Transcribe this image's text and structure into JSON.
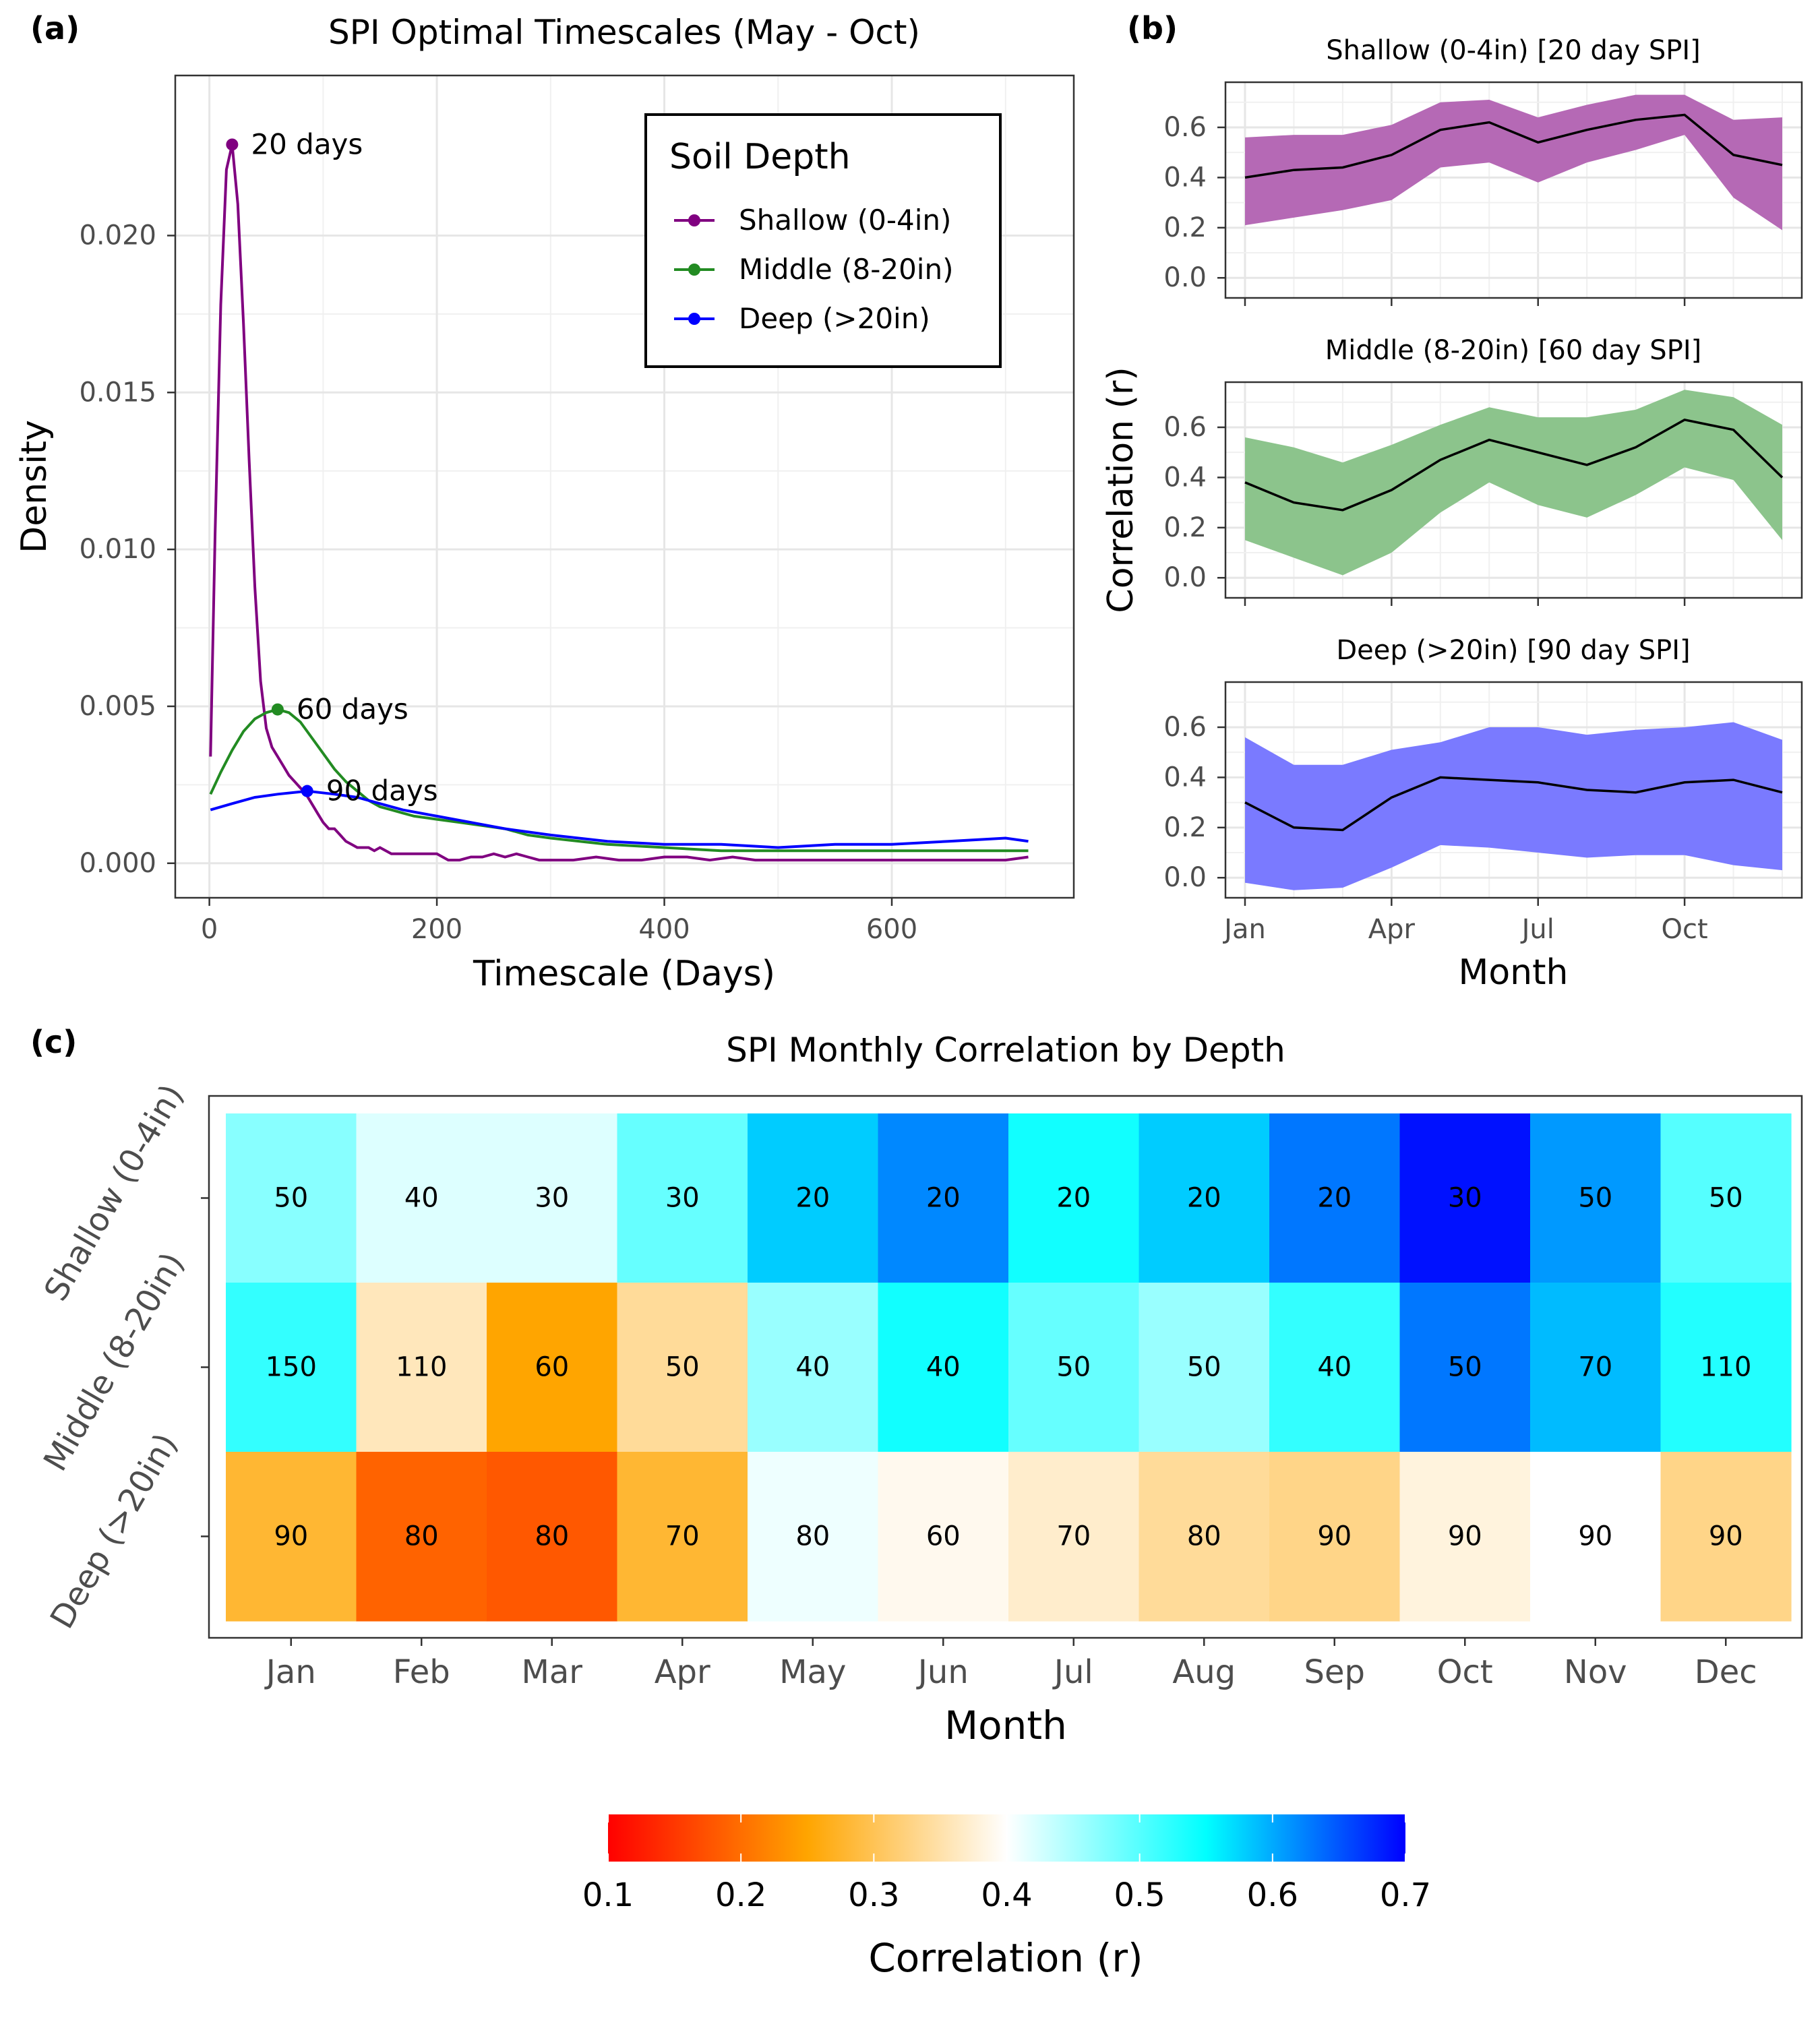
{
  "panel_labels": [
    "(a)",
    "(b)",
    "(c)"
  ],
  "colors": {
    "shallow": "#800080",
    "middle": "#228B22",
    "deep": "#0000FF",
    "shallow_fill": "#b569b5",
    "middle_fill": "#8cc48c",
    "deep_fill": "#7a7aff",
    "mean_line": "#000000"
  },
  "chart_data": [
    {
      "id": "a",
      "type": "line",
      "title": "SPI Optimal Timescales (May - Oct)",
      "xlabel": "Timescale (Days)",
      "ylabel": "Density",
      "xlim": [
        -30,
        760
      ],
      "ylim": [
        -0.0011,
        0.0251
      ],
      "xticks": [
        0,
        200,
        400,
        600
      ],
      "yticks": [
        0.0,
        0.005,
        0.01,
        0.015,
        0.02
      ],
      "ytick_labels": [
        "0.000",
        "0.005",
        "0.010",
        "0.015",
        "0.020"
      ],
      "grid": true,
      "legend": {
        "title": "Soil Depth",
        "position": "top-right"
      },
      "series": [
        {
          "name": "Shallow (0-4in)",
          "color": "#800080",
          "peak": {
            "x": 20,
            "y": 0.0229,
            "label": "20 days"
          },
          "x": [
            1,
            5,
            10,
            15,
            20,
            25,
            30,
            35,
            40,
            45,
            50,
            55,
            60,
            65,
            70,
            75,
            80,
            85,
            90,
            95,
            100,
            105,
            110,
            115,
            120,
            125,
            130,
            135,
            140,
            145,
            150,
            160,
            170,
            180,
            190,
            200,
            210,
            220,
            230,
            240,
            250,
            260,
            270,
            280,
            290,
            300,
            320,
            340,
            360,
            380,
            400,
            420,
            440,
            460,
            480,
            500,
            520,
            540,
            560,
            580,
            600,
            620,
            640,
            660,
            680,
            700,
            720
          ],
          "y": [
            0.0034,
            0.0105,
            0.0178,
            0.0221,
            0.0229,
            0.021,
            0.0172,
            0.0128,
            0.0088,
            0.0058,
            0.0043,
            0.0037,
            0.0034,
            0.0031,
            0.0028,
            0.0026,
            0.0024,
            0.0022,
            0.0019,
            0.0016,
            0.0013,
            0.0011,
            0.0011,
            0.0009,
            0.0007,
            0.0006,
            0.0005,
            0.0005,
            0.0005,
            0.0004,
            0.0005,
            0.0003,
            0.0003,
            0.0003,
            0.0003,
            0.0003,
            0.0001,
            0.0001,
            0.0002,
            0.0002,
            0.0003,
            0.0002,
            0.0003,
            0.0002,
            0.0001,
            0.0001,
            0.0001,
            0.0002,
            0.0001,
            0.0001,
            0.0002,
            0.0002,
            0.0001,
            0.0002,
            0.0001,
            0.0001,
            0.0001,
            0.0001,
            0.0001,
            0.0001,
            0.0001,
            0.0001,
            0.0001,
            0.0001,
            0.0001,
            0.0001,
            0.0002
          ]
        },
        {
          "name": "Middle (8-20in)",
          "color": "#228B22",
          "peak": {
            "x": 60,
            "y": 0.0049,
            "label": "60 days"
          },
          "x": [
            1,
            10,
            20,
            30,
            40,
            50,
            60,
            70,
            80,
            90,
            100,
            110,
            120,
            130,
            140,
            150,
            160,
            170,
            180,
            200,
            220,
            240,
            260,
            280,
            300,
            350,
            400,
            450,
            500,
            550,
            600,
            650,
            700,
            720
          ],
          "y": [
            0.0022,
            0.0029,
            0.0036,
            0.0042,
            0.0046,
            0.0048,
            0.0049,
            0.0048,
            0.0045,
            0.004,
            0.0035,
            0.003,
            0.0026,
            0.0023,
            0.002,
            0.0018,
            0.0017,
            0.0016,
            0.0015,
            0.0014,
            0.0013,
            0.0012,
            0.0011,
            0.0009,
            0.0008,
            0.0006,
            0.0005,
            0.0004,
            0.0004,
            0.0004,
            0.0004,
            0.0004,
            0.0004,
            0.0004
          ]
        },
        {
          "name": "Deep (>20in)",
          "color": "#0000FF",
          "peak": {
            "x": 86,
            "y": 0.0023,
            "label": "90 days"
          },
          "x": [
            1,
            20,
            40,
            60,
            86,
            110,
            130,
            150,
            170,
            200,
            230,
            260,
            300,
            350,
            400,
            450,
            500,
            550,
            600,
            650,
            700,
            720
          ],
          "y": [
            0.0017,
            0.0019,
            0.0021,
            0.0022,
            0.0023,
            0.0022,
            0.0021,
            0.0019,
            0.0017,
            0.0015,
            0.0013,
            0.0011,
            0.0009,
            0.0007,
            0.0006,
            0.0006,
            0.0005,
            0.0006,
            0.0006,
            0.0007,
            0.0008,
            0.0007
          ]
        }
      ]
    },
    {
      "id": "b",
      "type": "area",
      "xlabel": "Month",
      "ylabel": "Correlation (r)",
      "x_months": [
        1,
        2,
        3,
        4,
        5,
        6,
        7,
        8,
        9,
        10,
        11,
        12
      ],
      "xticks": [
        1,
        4,
        7,
        10
      ],
      "xtick_labels": [
        "Jan",
        "Apr",
        "Jul",
        "Oct"
      ],
      "xlim": [
        0.6,
        12.4
      ],
      "ylim": [
        -0.08,
        0.78
      ],
      "yticks": [
        0.0,
        0.2,
        0.4,
        0.6
      ],
      "ytick_labels": [
        "0.0",
        "0.2",
        "0.4",
        "0.6"
      ],
      "grid": true,
      "panels": [
        {
          "title": "Shallow (0-4in) [20 day SPI]",
          "mean": [
            0.4,
            0.43,
            0.44,
            0.49,
            0.59,
            0.62,
            0.54,
            0.59,
            0.63,
            0.65,
            0.49,
            0.45
          ],
          "lower": [
            0.21,
            0.24,
            0.27,
            0.31,
            0.44,
            0.46,
            0.38,
            0.46,
            0.51,
            0.57,
            0.32,
            0.19
          ],
          "upper": [
            0.56,
            0.57,
            0.57,
            0.61,
            0.7,
            0.71,
            0.64,
            0.69,
            0.73,
            0.73,
            0.63,
            0.64
          ]
        },
        {
          "title": "Middle (8-20in) [60 day SPI]",
          "mean": [
            0.38,
            0.3,
            0.27,
            0.35,
            0.47,
            0.55,
            0.5,
            0.45,
            0.52,
            0.63,
            0.59,
            0.4
          ],
          "lower": [
            0.15,
            0.08,
            0.01,
            0.1,
            0.26,
            0.38,
            0.29,
            0.24,
            0.33,
            0.44,
            0.39,
            0.15
          ],
          "upper": [
            0.56,
            0.52,
            0.46,
            0.53,
            0.61,
            0.68,
            0.64,
            0.64,
            0.67,
            0.75,
            0.72,
            0.61
          ]
        },
        {
          "title": "Deep (>20in) [90 day SPI]",
          "mean": [
            0.3,
            0.2,
            0.19,
            0.32,
            0.4,
            0.39,
            0.38,
            0.35,
            0.34,
            0.38,
            0.39,
            0.34
          ],
          "lower": [
            -0.02,
            -0.05,
            -0.04,
            0.04,
            0.13,
            0.12,
            0.1,
            0.08,
            0.09,
            0.09,
            0.05,
            0.03
          ],
          "upper": [
            0.56,
            0.45,
            0.45,
            0.51,
            0.54,
            0.6,
            0.6,
            0.57,
            0.59,
            0.6,
            0.62,
            0.55
          ]
        }
      ]
    },
    {
      "id": "c",
      "type": "heatmap",
      "title": "SPI Monthly Correlation by Depth",
      "xlabel": "Month",
      "categories": [
        "Jan",
        "Feb",
        "Mar",
        "Apr",
        "May",
        "Jun",
        "Jul",
        "Aug",
        "Sep",
        "Oct",
        "Nov",
        "Dec"
      ],
      "rows": [
        "Shallow (0-4in)",
        "Middle (8-20in)",
        "Deep (>20in)"
      ],
      "timescale_labels": [
        [
          50,
          40,
          30,
          30,
          20,
          20,
          20,
          20,
          20,
          30,
          50,
          50
        ],
        [
          150,
          110,
          60,
          50,
          40,
          40,
          50,
          50,
          40,
          50,
          70,
          110
        ],
        [
          90,
          80,
          80,
          70,
          80,
          60,
          70,
          80,
          90,
          90,
          90,
          90
        ]
      ],
      "correlations": [
        [
          0.47,
          0.42,
          0.42,
          0.49,
          0.58,
          0.62,
          0.54,
          0.58,
          0.63,
          0.69,
          0.61,
          0.5
        ],
        [
          0.52,
          0.36,
          0.25,
          0.34,
          0.46,
          0.54,
          0.49,
          0.46,
          0.52,
          0.63,
          0.59,
          0.53
        ],
        [
          0.28,
          0.19,
          0.18,
          0.28,
          0.41,
          0.39,
          0.37,
          0.34,
          0.33,
          0.38,
          0.4,
          0.33
        ]
      ],
      "colorbar": {
        "title": "Correlation (r)",
        "range": [
          0.1,
          0.7
        ],
        "ticks": [
          0.1,
          0.2,
          0.3,
          0.4,
          0.5,
          0.6,
          0.7
        ],
        "tick_labels": [
          "0.1",
          "0.2",
          "0.3",
          "0.4",
          "0.5",
          "0.6",
          "0.7"
        ],
        "stops": [
          {
            "value": 0.1,
            "color": "#FF0000"
          },
          {
            "value": 0.25,
            "color": "#FFA500"
          },
          {
            "value": 0.4,
            "color": "#FFFFFF"
          },
          {
            "value": 0.55,
            "color": "#00FFFF"
          },
          {
            "value": 0.7,
            "color": "#0000FF"
          }
        ]
      }
    }
  ]
}
